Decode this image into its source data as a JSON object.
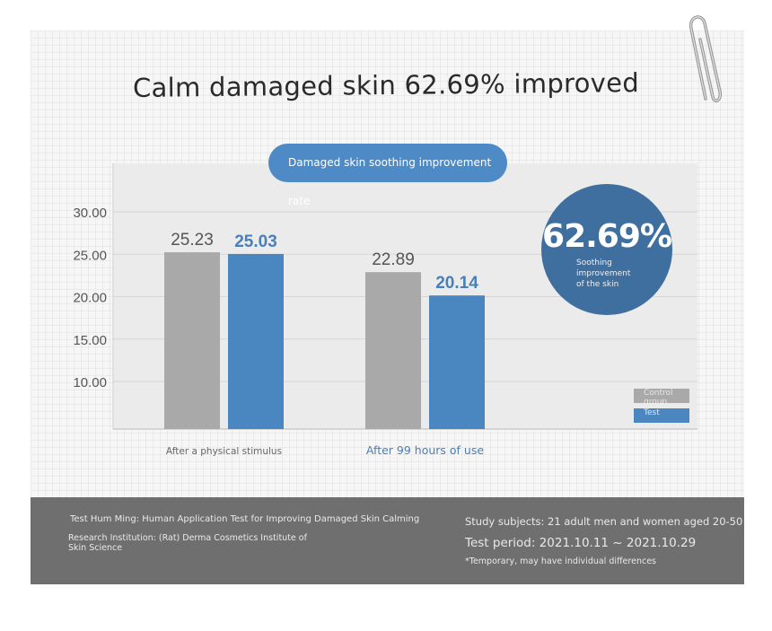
{
  "title": "Calm damaged skin 62.69% improved",
  "pill_label": "Damaged skin soothing improvement rate",
  "highlight": {
    "value": "62.69%",
    "caption": "Soothing improvement of the skin"
  },
  "colors": {
    "control": "#a9a9a9",
    "test": "#4a87c0",
    "test_label": "#4a7fb8",
    "circle": "#3f6f9f",
    "pill": "#4e8ac6",
    "footer": "#6f6f6f"
  },
  "chart_data": {
    "type": "bar",
    "categories": [
      "After a physical stimulus",
      "After 99 hours of use"
    ],
    "series": [
      {
        "name": "Control group",
        "values": [
          25.23,
          22.89
        ]
      },
      {
        "name": "Test",
        "values": [
          25.03,
          20.14
        ]
      }
    ],
    "value_labels": [
      [
        "25.23",
        "22.89"
      ],
      [
        "25.03",
        "20.14"
      ]
    ],
    "yticks": [
      "30.00",
      "25.00",
      "20.00",
      "15.00",
      "10.00"
    ],
    "ytick_values": [
      30,
      25,
      20,
      15,
      10
    ],
    "ylim": [
      5,
      30
    ],
    "grid": true,
    "legend_position": "bottom-right"
  },
  "footer": {
    "test_name": "Test Hum Ming: Human Application Test for Improving Damaged Skin Calming",
    "institution": "Research Institution: (Rat) Derma Cosmetics Institute of Skin Science",
    "subjects": "Study subjects: 21 adult men and women aged 20-50",
    "period": "Test period: 2021.10.11 ~ 2021.10.29",
    "note": "*Temporary, may have individual differences"
  }
}
